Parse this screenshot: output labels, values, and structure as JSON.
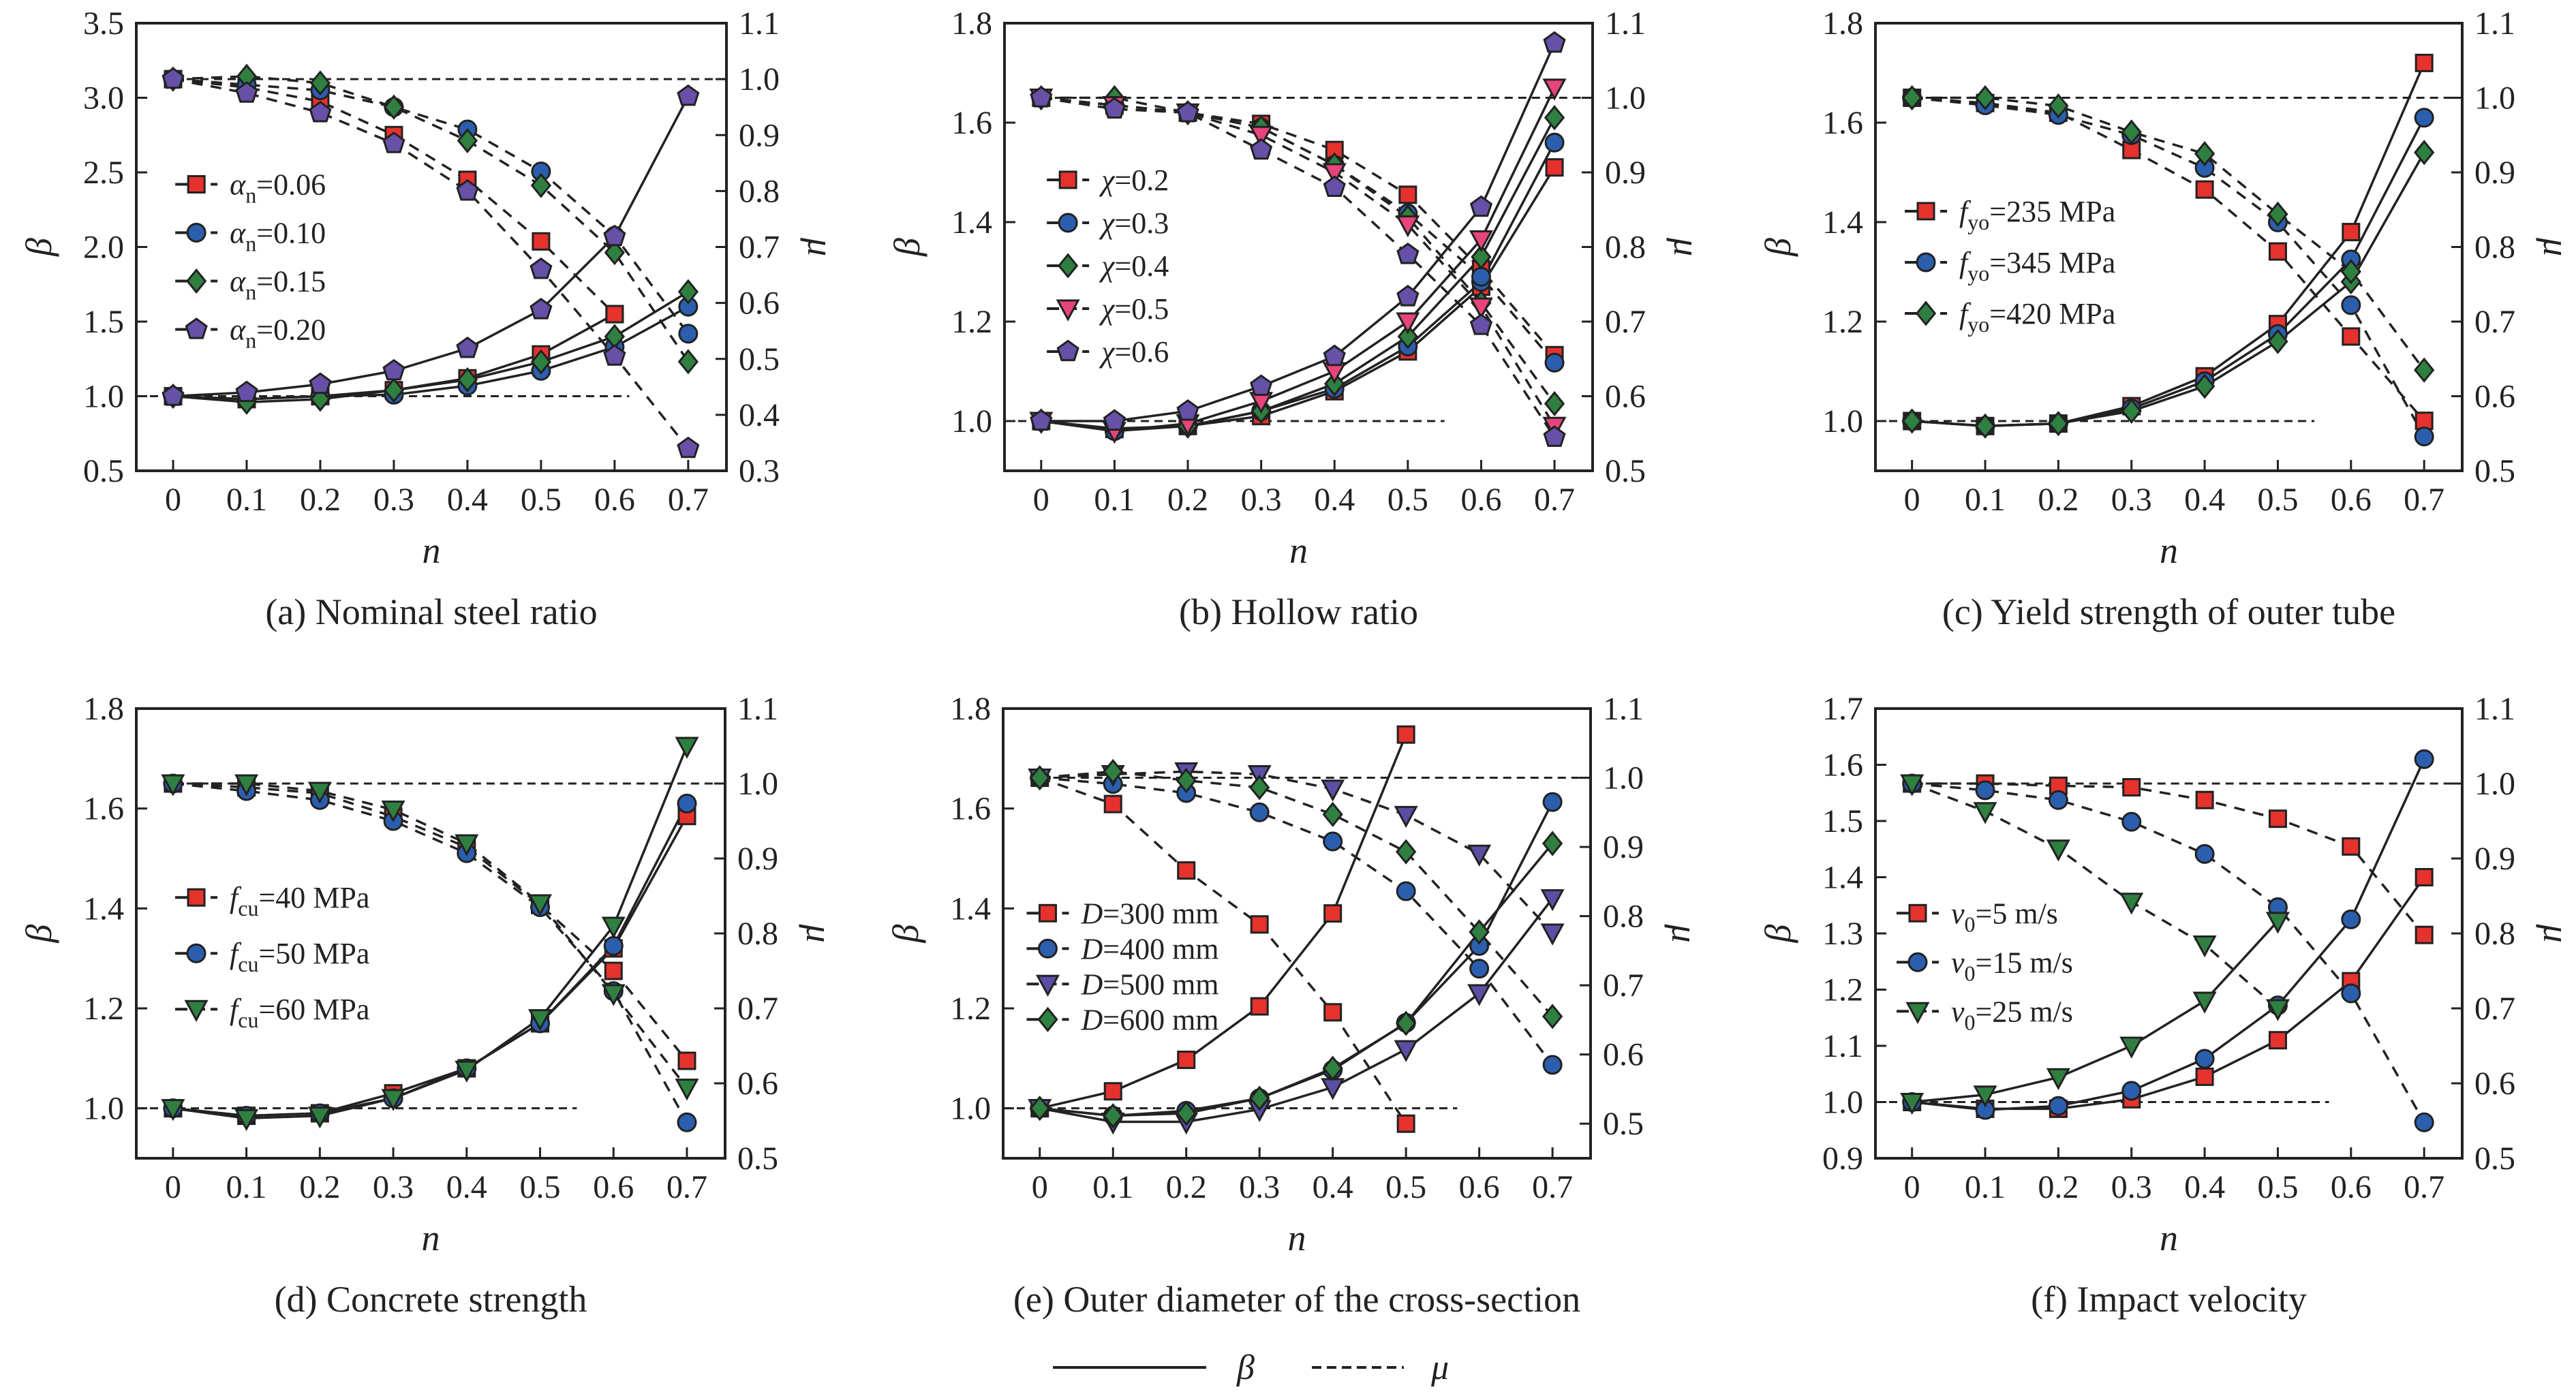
{
  "figure": {
    "global_legend": {
      "beta_label": "β",
      "mu_label": "μ"
    }
  },
  "chart_data": [
    {
      "type": "line",
      "caption": "(a) Nominal steel ratio",
      "xlabel": "n",
      "ylabel_left": "β",
      "ylabel_right": "μ",
      "x": [
        0,
        0.1,
        0.2,
        0.3,
        0.4,
        0.5,
        0.6,
        0.7
      ],
      "x_ticks": [
        "0",
        "0.1",
        "0.2",
        "0.3",
        "0.4",
        "0.5",
        "0.6",
        "0.7"
      ],
      "ylim_left": [
        0.5,
        3.5
      ],
      "y_ticks_left": [
        "0.5",
        "1.0",
        "1.5",
        "2.0",
        "2.5",
        "3.0",
        "3.5"
      ],
      "ylim_right": [
        0.3,
        1.1
      ],
      "y_ticks_right": [
        "0.3",
        "0.4",
        "0.5",
        "0.6",
        "0.7",
        "0.8",
        "0.9",
        "1.0",
        "1.1"
      ],
      "series": [
        {
          "sym": "α",
          "sub": "n",
          "text": "=0.06",
          "marker": "square",
          "color": "#e5322d",
          "beta": [
            1.0,
            0.98,
            1.0,
            1.04,
            1.12,
            1.28,
            1.55,
            null
          ],
          "mu": [
            1.0,
            0.985,
            0.96,
            0.9,
            0.82,
            0.71,
            0.58,
            null
          ]
        },
        {
          "sym": "α",
          "sub": "n",
          "text": "=0.10",
          "marker": "circle",
          "color": "#2b5fae",
          "beta": [
            1.0,
            0.98,
            1.0,
            1.01,
            1.07,
            1.17,
            1.33,
            1.6
          ],
          "mu": [
            1.0,
            0.99,
            0.98,
            0.95,
            0.91,
            0.835,
            0.72,
            0.545
          ]
        },
        {
          "sym": "α",
          "sub": "n",
          "text": "=0.15",
          "marker": "diamond",
          "color": "#2f8040",
          "beta": [
            1.0,
            0.96,
            0.98,
            1.04,
            1.11,
            1.23,
            1.4,
            1.7
          ],
          "mu": [
            1.0,
            1.005,
            0.993,
            0.95,
            0.89,
            0.81,
            0.69,
            0.495
          ]
        },
        {
          "sym": "α",
          "sub": "n",
          "text": "=0.20",
          "marker": "pentagon",
          "color": "#6650a8",
          "beta": [
            1.0,
            1.025,
            1.08,
            1.17,
            1.32,
            1.58,
            2.07,
            3.01
          ],
          "mu": [
            1.0,
            0.975,
            0.94,
            0.885,
            0.8,
            0.66,
            0.505,
            0.34
          ]
        }
      ]
    },
    {
      "type": "line",
      "caption": "(b) Hollow ratio",
      "xlabel": "n",
      "ylabel_left": "β",
      "ylabel_right": "μ",
      "x": [
        0,
        0.1,
        0.2,
        0.3,
        0.4,
        0.5,
        0.6,
        0.7
      ],
      "x_ticks": [
        "0",
        "0.1",
        "0.2",
        "0.3",
        "0.4",
        "0.5",
        "0.6",
        "0.7"
      ],
      "ylim_left": [
        0.9,
        1.8
      ],
      "y_ticks_left": [
        "1.0",
        "1.2",
        "1.4",
        "1.6",
        "1.8"
      ],
      "ylim_right": [
        0.5,
        1.1
      ],
      "y_ticks_right": [
        "0.5",
        "0.6",
        "0.7",
        "0.8",
        "0.9",
        "1.0",
        "1.1"
      ],
      "series": [
        {
          "sym": "χ",
          "sub": "",
          "text": "=0.2",
          "marker": "square",
          "color": "#e5322d",
          "beta": [
            1.0,
            0.984,
            0.99,
            1.01,
            1.06,
            1.14,
            1.27,
            1.51
          ],
          "mu": [
            1.0,
            0.99,
            0.98,
            0.965,
            0.93,
            0.87,
            0.77,
            0.655
          ]
        },
        {
          "sym": "χ",
          "sub": "",
          "text": "=0.3",
          "marker": "circle",
          "color": "#2b5fae",
          "beta": [
            1.0,
            0.98,
            0.99,
            1.02,
            1.065,
            1.15,
            1.28,
            1.56
          ],
          "mu": [
            1.0,
            0.99,
            0.98,
            0.96,
            0.91,
            0.845,
            0.76,
            0.645
          ]
        },
        {
          "sym": "χ",
          "sub": "",
          "text": "=0.4",
          "marker": "diamond",
          "color": "#2f8040",
          "beta": [
            1.0,
            0.985,
            0.99,
            1.02,
            1.075,
            1.17,
            1.33,
            1.61
          ],
          "mu": [
            1.0,
            1.0,
            0.98,
            0.96,
            0.91,
            0.84,
            0.725,
            0.59
          ]
        },
        {
          "sym": "χ",
          "sub": "",
          "text": "=0.5",
          "marker": "triangle-down",
          "color": "#e8447c",
          "beta": [
            1.0,
            0.98,
            0.995,
            1.04,
            1.1,
            1.2,
            1.365,
            1.67
          ],
          "mu": [
            1.0,
            0.99,
            0.98,
            0.95,
            0.9,
            0.83,
            0.72,
            0.56
          ]
        },
        {
          "sym": "χ",
          "sub": "",
          "text": "=0.6",
          "marker": "pentagon",
          "color": "#6650a8",
          "beta": [
            1.0,
            1.0,
            1.02,
            1.07,
            1.13,
            1.25,
            1.43,
            1.76
          ],
          "mu": [
            1.0,
            0.985,
            0.98,
            0.93,
            0.88,
            0.79,
            0.695,
            0.545
          ]
        }
      ]
    },
    {
      "type": "line",
      "caption": "(c) Yield strength of outer tube",
      "xlabel": "n",
      "ylabel_left": "β",
      "ylabel_right": "μ",
      "x": [
        0,
        0.1,
        0.2,
        0.3,
        0.4,
        0.5,
        0.6,
        0.7
      ],
      "x_ticks": [
        "0",
        "0.1",
        "0.2",
        "0.3",
        "0.4",
        "0.5",
        "0.6",
        "0.7"
      ],
      "ylim_left": [
        0.9,
        1.8
      ],
      "y_ticks_left": [
        "1.0",
        "1.2",
        "1.4",
        "1.6",
        "1.8"
      ],
      "ylim_right": [
        0.5,
        1.1
      ],
      "y_ticks_right": [
        "0.5",
        "0.6",
        "0.7",
        "0.8",
        "0.9",
        "1.0",
        "1.1"
      ],
      "series": [
        {
          "sym": "f",
          "sub": "yo",
          "text": "=235 MPa",
          "marker": "square",
          "color": "#e5322d",
          "beta": [
            1.0,
            0.99,
            0.995,
            1.03,
            1.09,
            1.195,
            1.38,
            1.72
          ],
          "mu": [
            1.0,
            0.993,
            0.98,
            0.93,
            0.877,
            0.794,
            0.68,
            0.567
          ]
        },
        {
          "sym": "f",
          "sub": "yo",
          "text": "=345 MPa",
          "marker": "circle",
          "color": "#2b5fae",
          "beta": [
            1.0,
            0.99,
            0.995,
            1.025,
            1.08,
            1.175,
            1.325,
            1.61
          ],
          "mu": [
            1.0,
            0.99,
            0.977,
            0.95,
            0.906,
            0.833,
            0.722,
            0.546
          ]
        },
        {
          "sym": "f",
          "sub": "yo",
          "text": "=420 MPa",
          "marker": "diamond",
          "color": "#2f8040",
          "beta": [
            1.0,
            0.99,
            0.995,
            1.02,
            1.07,
            1.16,
            1.28,
            1.54
          ],
          "mu": [
            1.0,
            1.0,
            0.989,
            0.954,
            0.925,
            0.844,
            0.767,
            0.635
          ]
        }
      ]
    },
    {
      "type": "line",
      "caption": "(d) Concrete strength",
      "xlabel": "n",
      "ylabel_left": "β",
      "ylabel_right": "μ",
      "x": [
        0,
        0.1,
        0.2,
        0.3,
        0.4,
        0.5,
        0.6,
        0.7
      ],
      "x_ticks": [
        "0",
        "0.1",
        "0.2",
        "0.3",
        "0.4",
        "0.5",
        "0.6",
        "0.7"
      ],
      "ylim_left": [
        0.9,
        1.8
      ],
      "y_ticks_left": [
        "1.0",
        "1.2",
        "1.4",
        "1.6",
        "1.8"
      ],
      "ylim_right": [
        0.5,
        1.1
      ],
      "y_ticks_right": [
        "0.5",
        "0.6",
        "0.7",
        "0.8",
        "0.9",
        "1.0",
        "1.1"
      ],
      "series": [
        {
          "sym": "f",
          "sub": "cu",
          "text": "=40 MPa",
          "marker": "square",
          "color": "#e5322d",
          "beta": [
            1.0,
            0.985,
            0.99,
            1.03,
            1.08,
            1.17,
            1.32,
            1.585
          ],
          "mu": [
            1.0,
            0.995,
            0.987,
            0.956,
            0.915,
            0.838,
            0.75,
            0.63
          ]
        },
        {
          "sym": "f",
          "sub": "cu",
          "text": "=50 MPa",
          "marker": "circle",
          "color": "#2b5fae",
          "beta": [
            1.0,
            0.985,
            0.99,
            1.02,
            1.08,
            1.17,
            1.325,
            1.61
          ],
          "mu": [
            1.0,
            0.99,
            0.978,
            0.95,
            0.907,
            0.835,
            0.723,
            0.548
          ]
        },
        {
          "sym": "f",
          "sub": "cu",
          "text": "=60 MPa",
          "marker": "triangle-down",
          "color": "#2f8040",
          "beta": [
            1.0,
            0.98,
            0.985,
            1.02,
            1.077,
            1.18,
            1.365,
            1.725
          ],
          "mu": [
            1.0,
            1.0,
            0.99,
            0.965,
            0.92,
            0.84,
            0.72,
            0.594
          ]
        }
      ]
    },
    {
      "type": "line",
      "caption": "(e) Outer diameter of the cross-section",
      "xlabel": "n",
      "ylabel_left": "β",
      "ylabel_right": "μ",
      "x": [
        0,
        0.1,
        0.2,
        0.3,
        0.4,
        0.5,
        0.6,
        0.7
      ],
      "x_ticks": [
        "0",
        "0.1",
        "0.2",
        "0.3",
        "0.4",
        "0.5",
        "0.6",
        "0.7"
      ],
      "ylim_left": [
        0.9,
        1.8
      ],
      "y_ticks_left": [
        "1.0",
        "1.2",
        "1.4",
        "1.6",
        "1.8"
      ],
      "ylim_right": [
        0.45,
        1.1
      ],
      "y_ticks_right": [
        "0.5",
        "0.6",
        "0.7",
        "0.8",
        "0.9",
        "1.0",
        "1.1"
      ],
      "series": [
        {
          "sym": "D",
          "sub": "",
          "text": "=300 mm",
          "marker": "square",
          "color": "#e5322d",
          "beta": [
            1.0,
            1.034,
            1.097,
            1.204,
            1.39,
            1.748,
            null,
            null
          ],
          "mu": [
            1.0,
            0.962,
            0.866,
            0.788,
            0.661,
            0.5,
            null,
            null
          ]
        },
        {
          "sym": "D",
          "sub": "",
          "text": "=400 mm",
          "marker": "circle",
          "color": "#2b5fae",
          "beta": [
            1.0,
            0.985,
            0.995,
            1.02,
            1.077,
            1.171,
            1.325,
            1.613
          ],
          "mu": [
            1.0,
            0.991,
            0.978,
            0.95,
            0.908,
            0.836,
            0.724,
            0.585
          ]
        },
        {
          "sym": "D",
          "sub": "",
          "text": "=500 mm",
          "marker": "triangle-down",
          "color": "#5a4fa5",
          "beta": [
            1.0,
            0.973,
            0.973,
            0.998,
            1.042,
            1.118,
            1.23,
            1.42
          ],
          "mu": [
            1.0,
            1.005,
            1.009,
            1.005,
            0.984,
            0.946,
            0.89,
            0.776
          ]
        },
        {
          "sym": "D",
          "sub": "",
          "text": "=600 mm",
          "marker": "diamond",
          "color": "#2f8040",
          "beta": [
            1.0,
            0.985,
            0.99,
            1.02,
            1.08,
            1.17,
            1.353,
            1.53
          ],
          "mu": [
            1.0,
            1.009,
            0.996,
            0.986,
            0.947,
            0.893,
            0.777,
            0.655
          ]
        }
      ]
    },
    {
      "type": "line",
      "caption": "(f) Impact velocity",
      "xlabel": "n",
      "ylabel_left": "β",
      "ylabel_right": "μ",
      "x": [
        0,
        0.1,
        0.2,
        0.3,
        0.4,
        0.5,
        0.6,
        0.7
      ],
      "x_ticks": [
        "0",
        "0.1",
        "0.2",
        "0.3",
        "0.4",
        "0.5",
        "0.6",
        "0.7"
      ],
      "ylim_left": [
        0.9,
        1.7
      ],
      "y_ticks_left": [
        "0.9",
        "1.0",
        "1.1",
        "1.2",
        "1.3",
        "1.4",
        "1.5",
        "1.6",
        "1.7"
      ],
      "ylim_right": [
        0.5,
        1.1
      ],
      "y_ticks_right": [
        "0.5",
        "0.6",
        "0.7",
        "0.8",
        "0.9",
        "1.0",
        "1.1"
      ],
      "series": [
        {
          "sym": "v",
          "sub": "0",
          "text": "=5 m/s",
          "marker": "square",
          "color": "#e5322d",
          "beta": [
            1.0,
            0.988,
            0.988,
            1.005,
            1.045,
            1.11,
            1.215,
            1.4
          ],
          "mu": [
            1.0,
            1.0,
            0.997,
            0.995,
            0.978,
            0.953,
            0.916,
            0.798
          ]
        },
        {
          "sym": "v",
          "sub": "0",
          "text": "=15 m/s",
          "marker": "circle",
          "color": "#2b5fae",
          "beta": [
            1.0,
            0.986,
            0.993,
            1.02,
            1.077,
            1.172,
            1.325,
            1.61
          ],
          "mu": [
            1.0,
            0.991,
            0.978,
            0.949,
            0.906,
            0.835,
            0.72,
            0.548
          ]
        },
        {
          "sym": "v",
          "sub": "0",
          "text": "=25 m/s",
          "marker": "triangle-down",
          "color": "#2f8040",
          "beta": [
            1.0,
            1.013,
            1.044,
            1.1,
            1.18,
            1.322,
            null,
            null
          ],
          "mu": [
            1.0,
            0.963,
            0.913,
            0.842,
            0.785,
            0.7,
            null,
            null
          ]
        }
      ]
    }
  ]
}
